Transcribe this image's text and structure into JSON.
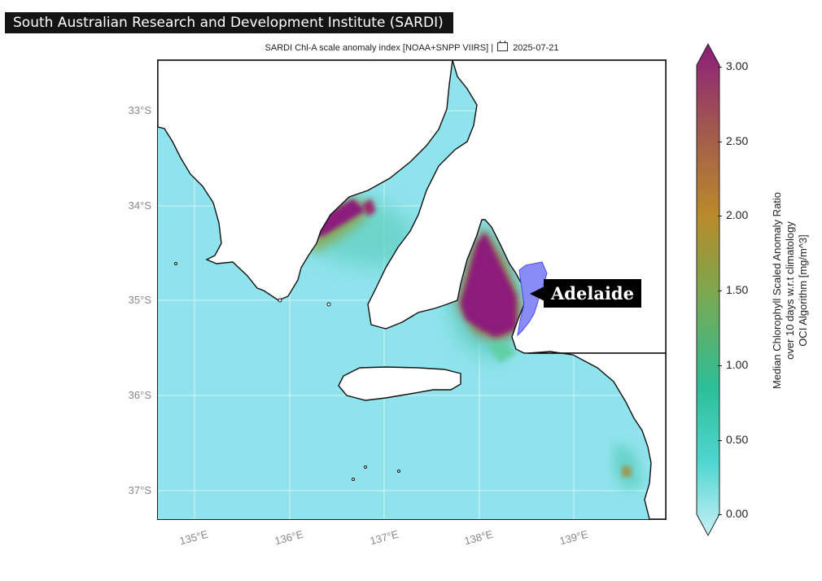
{
  "source_banner": "South Australian Research and Development Institute (SARDI)",
  "map": {
    "title_prefix": "SARDI Chl-A scale anomaly index [NOAA+SNPP VIIRS] |",
    "date": "2025-07-21",
    "lat_ticks": [
      "33°S",
      "34°S",
      "35°S",
      "36°S",
      "37°S"
    ],
    "lon_ticks": [
      "135°E",
      "136°E",
      "137°E",
      "138°E",
      "139°E"
    ],
    "city_label": "Adelaide",
    "colors": {
      "ocean_low": "#8fe3ec",
      "land": "#ffffff",
      "coastline": "#111111",
      "highlight_region": "#8a8cf6"
    }
  },
  "colorbar": {
    "tick_labels": [
      "3.00",
      "2.50",
      "2.00",
      "1.50",
      "1.00",
      "0.50",
      "0.00"
    ],
    "label_lines": [
      "Median Chlorophyll Scaled Anomaly Ratio",
      "over 10 days w.r.t climatology",
      "OCI Algorithm [mg/m^3]"
    ],
    "range": [
      0,
      3
    ],
    "colors": [
      "#c8f0f7",
      "#4fd6cf",
      "#2cbf9a",
      "#7ea64c",
      "#b98a2a",
      "#a35a4d",
      "#8c1e7c"
    ]
  }
}
